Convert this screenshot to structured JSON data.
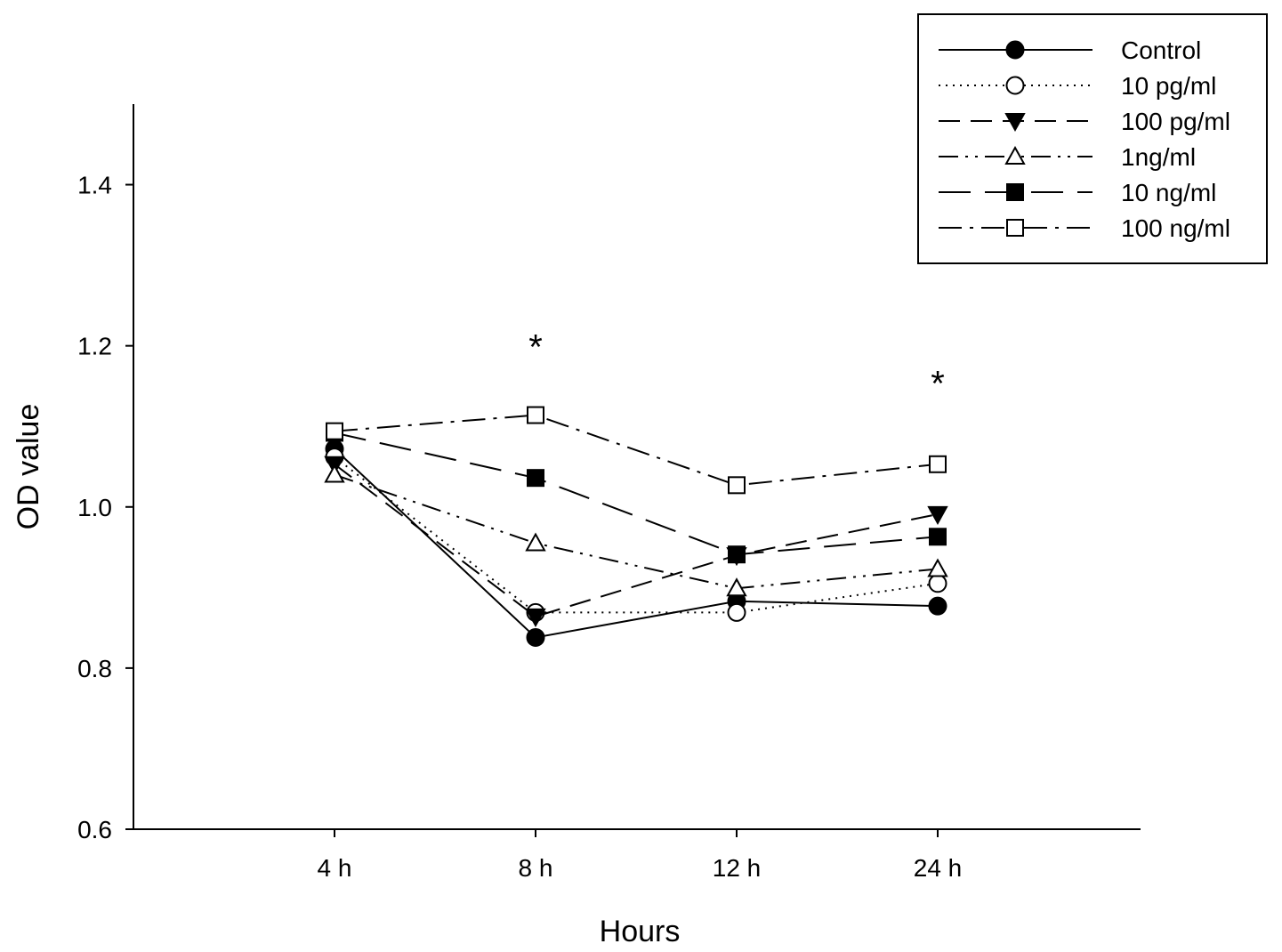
{
  "chart_data": {
    "type": "line",
    "title": "",
    "xlabel": "Hours",
    "ylabel": "OD value",
    "categories": [
      "4 h",
      "8 h",
      "12 h",
      "24 h"
    ],
    "ylim": [
      0.6,
      1.5
    ],
    "yticks": [
      0.6,
      0.8,
      1.0,
      1.2,
      1.4
    ],
    "ytick_labels": [
      "0.6",
      "0.8",
      "1.0",
      "1.2",
      "1.4"
    ],
    "grid": false,
    "legend_position": "top-right",
    "series": [
      {
        "name": "Control",
        "values": [
          1.072,
          0.838,
          0.883,
          0.877
        ],
        "marker": "circle-filled",
        "line": "solid",
        "color": "#000000"
      },
      {
        "name": "10 pg/ml",
        "values": [
          1.062,
          0.869,
          0.869,
          0.905
        ],
        "marker": "circle-open",
        "line": "dotted",
        "color": "#000000"
      },
      {
        "name": "100 pg/ml",
        "values": [
          1.053,
          0.864,
          0.94,
          0.991
        ],
        "marker": "triangle-down-filled",
        "line": "dashed",
        "color": "#000000"
      },
      {
        "name": "1ng/ml",
        "values": [
          1.04,
          0.955,
          0.899,
          0.923
        ],
        "marker": "triangle-up-open",
        "line": "dash-dot-dot",
        "color": "#000000"
      },
      {
        "name": "10 ng/ml",
        "values": [
          1.092,
          1.036,
          0.941,
          0.963
        ],
        "marker": "square-filled",
        "line": "long-dash",
        "color": "#000000"
      },
      {
        "name": "100 ng/ml",
        "values": [
          1.094,
          1.114,
          1.027,
          1.053
        ],
        "marker": "square-open",
        "line": "dash-dot",
        "color": "#000000"
      }
    ],
    "annotations": [
      {
        "text": "*",
        "category": "8 h",
        "y": 1.21
      },
      {
        "text": "*",
        "category": "24 h",
        "y": 1.165
      }
    ]
  }
}
